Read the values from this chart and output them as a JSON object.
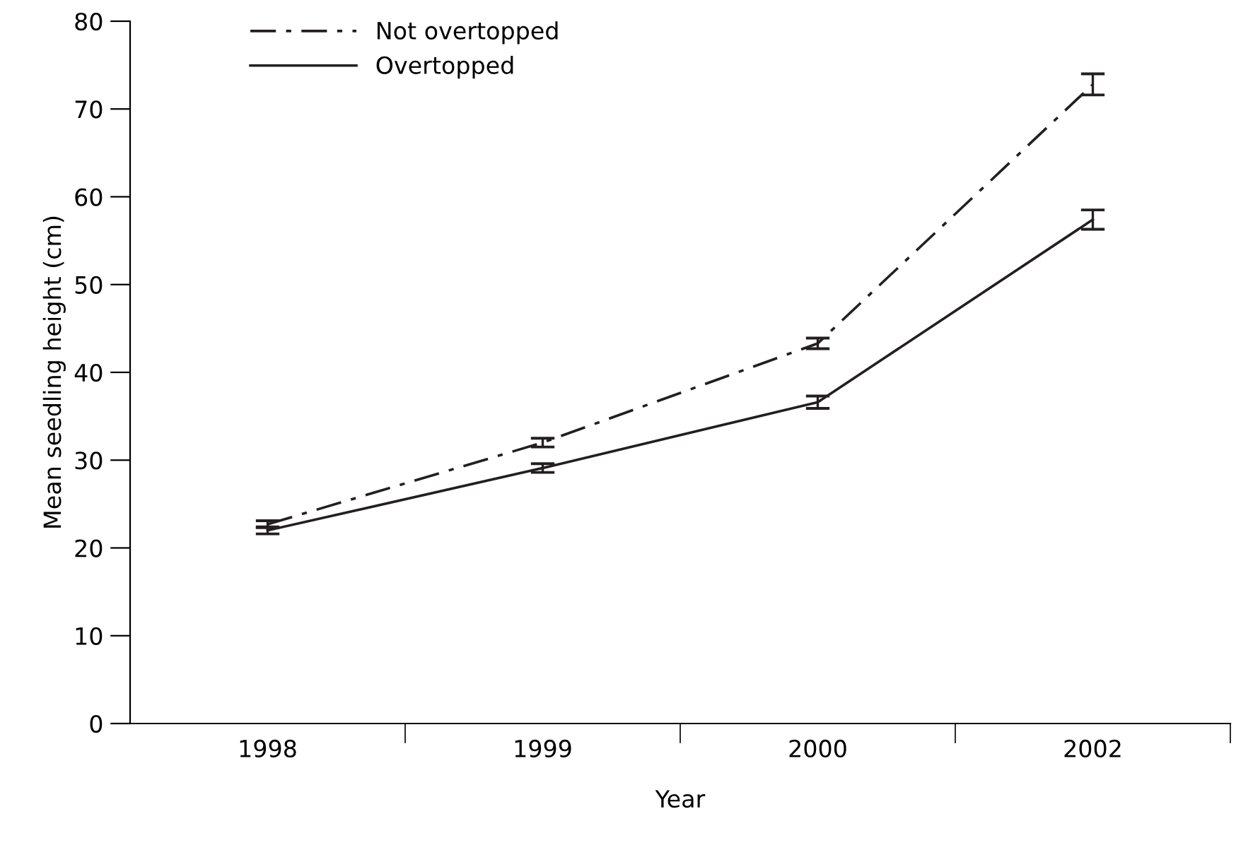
{
  "chart_data": {
    "type": "line",
    "xlabel": "Year",
    "ylabel": "Mean seedling height (cm)",
    "categories": [
      "1998",
      "1999",
      "2000",
      "2002"
    ],
    "series": [
      {
        "name": "Not overtopped",
        "color": "#231f20",
        "line_style": "dashdot",
        "values": [
          22.7,
          32.0,
          43.3,
          72.8
        ],
        "errors": [
          0.4,
          0.5,
          0.6,
          1.2
        ]
      },
      {
        "name": "Overtopped",
        "color": "#231f20",
        "line_style": "solid",
        "values": [
          22.0,
          29.1,
          36.6,
          57.4
        ],
        "errors": [
          0.4,
          0.5,
          0.7,
          1.1
        ]
      }
    ],
    "ylim": [
      0,
      80
    ],
    "yticks": [
      0,
      10,
      20,
      30,
      40,
      50,
      60,
      70,
      80
    ],
    "grid": false,
    "legend": "top left",
    "marker": "none"
  }
}
